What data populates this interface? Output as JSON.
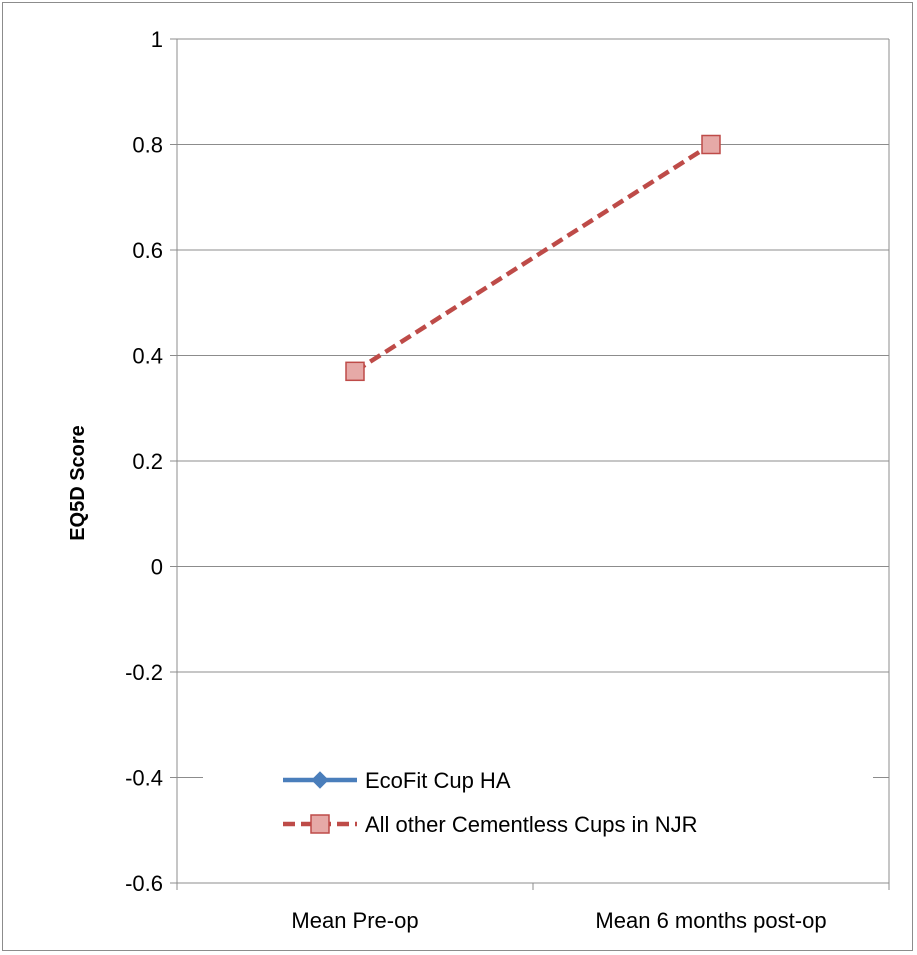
{
  "chart_data": {
    "type": "line",
    "categories": [
      "Mean Pre-op",
      "Mean 6 months post-op"
    ],
    "ylabel": "EQ5D Score",
    "xlabel": "",
    "title": "",
    "ylim": [
      -0.6,
      1
    ],
    "yticks": [
      -0.6,
      -0.4,
      -0.2,
      0,
      0.2,
      0.4,
      0.6,
      0.8,
      1
    ],
    "ytick_labels": [
      "-0.6",
      "-0.4",
      "-0.2",
      "0",
      "0.2",
      "0.4",
      "0.6",
      "0.8",
      "1"
    ],
    "grid": true,
    "legend_position": "lower-left",
    "series": [
      {
        "name": "EcoFit Cup HA",
        "values": [
          null,
          null
        ],
        "color": "#4a7ebb",
        "marker": "diamond",
        "line_style": "solid"
      },
      {
        "name": "All other Cementless Cups in NJR",
        "values": [
          0.37,
          0.8
        ],
        "color": "#be4b48",
        "marker_fill": "#e6a9a7",
        "marker": "square",
        "line_style": "dashed"
      }
    ]
  }
}
